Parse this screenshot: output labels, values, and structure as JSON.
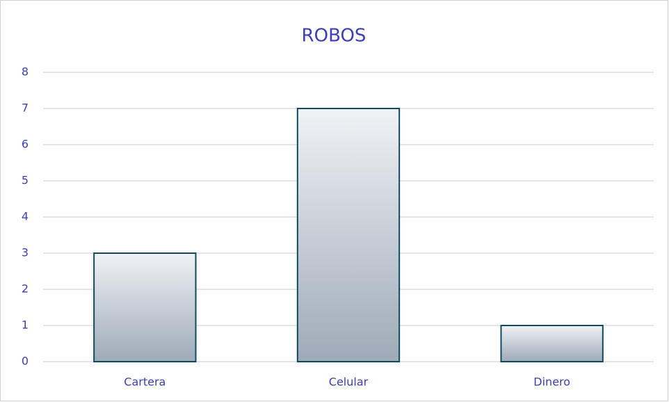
{
  "chart_data": {
    "type": "bar",
    "title": "ROBOS",
    "categories": [
      "Cartera",
      "Celular",
      "Dinero"
    ],
    "values": [
      3,
      7,
      1
    ],
    "color": "#0e4a5e",
    "ylim": [
      0,
      8
    ],
    "yticks": [
      0,
      1,
      2,
      3,
      4,
      5,
      6,
      7,
      8
    ],
    "grid": true
  }
}
